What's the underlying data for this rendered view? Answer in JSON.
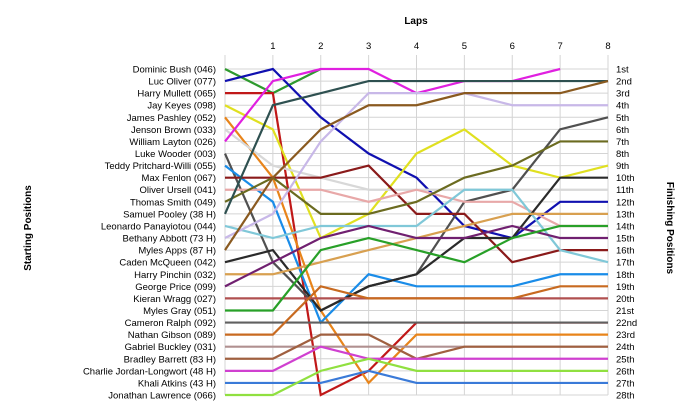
{
  "chart_data": {
    "type": "line",
    "title": "Laps",
    "ylabel_left": "Starting Positions",
    "ylabel_right": "Finishing Positions",
    "x": [
      0,
      1,
      2,
      3,
      4,
      5,
      6,
      7,
      8
    ],
    "x_tick_labels": [
      "1",
      "2",
      "3",
      "4",
      "5",
      "6",
      "7",
      "8"
    ],
    "y_range": [
      1,
      28
    ],
    "y_inverted": true,
    "grid": true,
    "position_labels": [
      "1st",
      "2nd",
      "3rd",
      "4th",
      "5th",
      "6th",
      "7th",
      "8th",
      "9th",
      "10th",
      "11th",
      "12th",
      "13th",
      "14th",
      "15th",
      "16th",
      "17th",
      "18th",
      "19th",
      "20th",
      "21st",
      "22nd",
      "23rd",
      "24th",
      "25th",
      "26th",
      "27th",
      "28th"
    ],
    "series": [
      {
        "name": "Dominic Bush (046)",
        "color": "#2e9a2e",
        "positions": [
          1,
          3,
          1
        ]
      },
      {
        "name": "Luc Oliver (077)",
        "color": "#1010b0",
        "positions": [
          2,
          1,
          5,
          8,
          10,
          14,
          15,
          12,
          12
        ]
      },
      {
        "name": "Harry Mullett (065)",
        "color": "#c01818",
        "positions": [
          3,
          3,
          28,
          26,
          22,
          22,
          22,
          22,
          22
        ]
      },
      {
        "name": "Jay Keyes (098)",
        "color": "#e0e020",
        "positions": [
          4,
          6,
          15,
          13,
          8,
          6,
          9,
          10,
          9
        ]
      },
      {
        "name": "James Pashley (052)",
        "color": "#e8841a",
        "positions": [
          5,
          10,
          21,
          27,
          23,
          23,
          23,
          23,
          23
        ]
      },
      {
        "name": "Jenson Brown (033)",
        "color": "#d8d8d8",
        "positions": [
          6,
          9,
          10,
          11,
          11,
          11,
          11,
          11,
          11
        ]
      },
      {
        "name": "William Layton (026)",
        "color": "#e020e0",
        "positions": [
          7,
          2,
          1,
          1,
          3,
          2,
          2,
          1
        ]
      },
      {
        "name": "Luke Wooder (003)",
        "color": "#505050",
        "positions": [
          8,
          17,
          21,
          19,
          18,
          12,
          11,
          6,
          5
        ]
      },
      {
        "name": "Teddy Pritchard-Willi (055)",
        "color": "#1a8ce8",
        "positions": [
          9,
          12,
          22,
          18,
          19,
          19,
          19,
          18,
          18
        ]
      },
      {
        "name": "Max Fenlon (067)",
        "color": "#8a1a1a",
        "positions": [
          10,
          10,
          10,
          9,
          13,
          13,
          17,
          16,
          16
        ]
      },
      {
        "name": "Oliver Ursell (041)",
        "color": "#e8a8a8",
        "positions": [
          11,
          11,
          11,
          12,
          11,
          12,
          12,
          14,
          14
        ]
      },
      {
        "name": "Thomas Smith (049)",
        "color": "#6b6b20",
        "positions": [
          12,
          10,
          13,
          13,
          12,
          10,
          9,
          7,
          7
        ]
      },
      {
        "name": "Samuel Pooley (38 H)",
        "color": "#2e5050",
        "positions": [
          13,
          4,
          3,
          2,
          2,
          2,
          2,
          2,
          2
        ]
      },
      {
        "name": "Leonardo Panayiotou (044)",
        "color": "#80c8d8",
        "positions": [
          14,
          15,
          14,
          14,
          14,
          11,
          11,
          16,
          17
        ]
      },
      {
        "name": "Bethany Abbott (73 H)",
        "color": "#c8b8e8",
        "positions": [
          15,
          13,
          7,
          3,
          3,
          3,
          4,
          4,
          4
        ]
      },
      {
        "name": "Myles Apps (87 H)",
        "color": "#8a5a20",
        "positions": [
          16,
          10,
          6,
          4,
          4,
          3,
          3,
          3,
          2
        ]
      },
      {
        "name": "Caden McQueen (042)",
        "color": "#2a2a2a",
        "positions": [
          17,
          16,
          21,
          19,
          18,
          15,
          15,
          10,
          10
        ]
      },
      {
        "name": "Harry Pinchin (032)",
        "color": "#d8a050",
        "positions": [
          18,
          18,
          17,
          16,
          15,
          14,
          13,
          13,
          13
        ]
      },
      {
        "name": "George Price (099)",
        "color": "#702070",
        "positions": [
          19,
          17,
          15,
          14,
          15,
          15,
          14,
          15,
          15
        ]
      },
      {
        "name": "Kieran Wragg (027)",
        "color": "#b05050",
        "positions": [
          20,
          20,
          20,
          20,
          20,
          20,
          20,
          20,
          20
        ]
      },
      {
        "name": "Myles Gray (051)",
        "color": "#28a028",
        "positions": [
          21,
          21,
          16,
          15,
          16,
          17,
          15,
          14,
          14
        ]
      },
      {
        "name": "Cameron Ralph (092)",
        "color": "#606060",
        "positions": [
          22,
          22,
          22,
          22,
          22,
          22,
          22,
          22,
          22
        ]
      },
      {
        "name": "Nathan Gibson (089)",
        "color": "#c86a20",
        "positions": [
          23,
          23,
          19,
          20,
          20,
          20,
          20,
          19,
          19
        ]
      },
      {
        "name": "Gabriel Buckley (031)",
        "color": "#b09090",
        "positions": [
          24,
          24,
          24,
          24,
          24,
          24,
          24,
          24,
          24
        ]
      },
      {
        "name": "Bradley Barrett (83 H)",
        "color": "#a06040",
        "positions": [
          25,
          25,
          23,
          23,
          25,
          24,
          24,
          24,
          24
        ]
      },
      {
        "name": "Charlie Jordan-Longwort (48 H)",
        "color": "#d040d0",
        "positions": [
          26,
          26,
          24,
          25,
          25,
          25,
          25,
          25,
          25
        ]
      },
      {
        "name": "Khali Atkins (43 H)",
        "color": "#3a7ad8",
        "positions": [
          27,
          27,
          27,
          26,
          27,
          27,
          27,
          27,
          27
        ]
      },
      {
        "name": "Jonathan Lawrence (066)",
        "color": "#90e040",
        "positions": [
          28,
          28,
          26,
          25,
          26,
          26,
          26,
          26,
          26
        ]
      }
    ]
  }
}
